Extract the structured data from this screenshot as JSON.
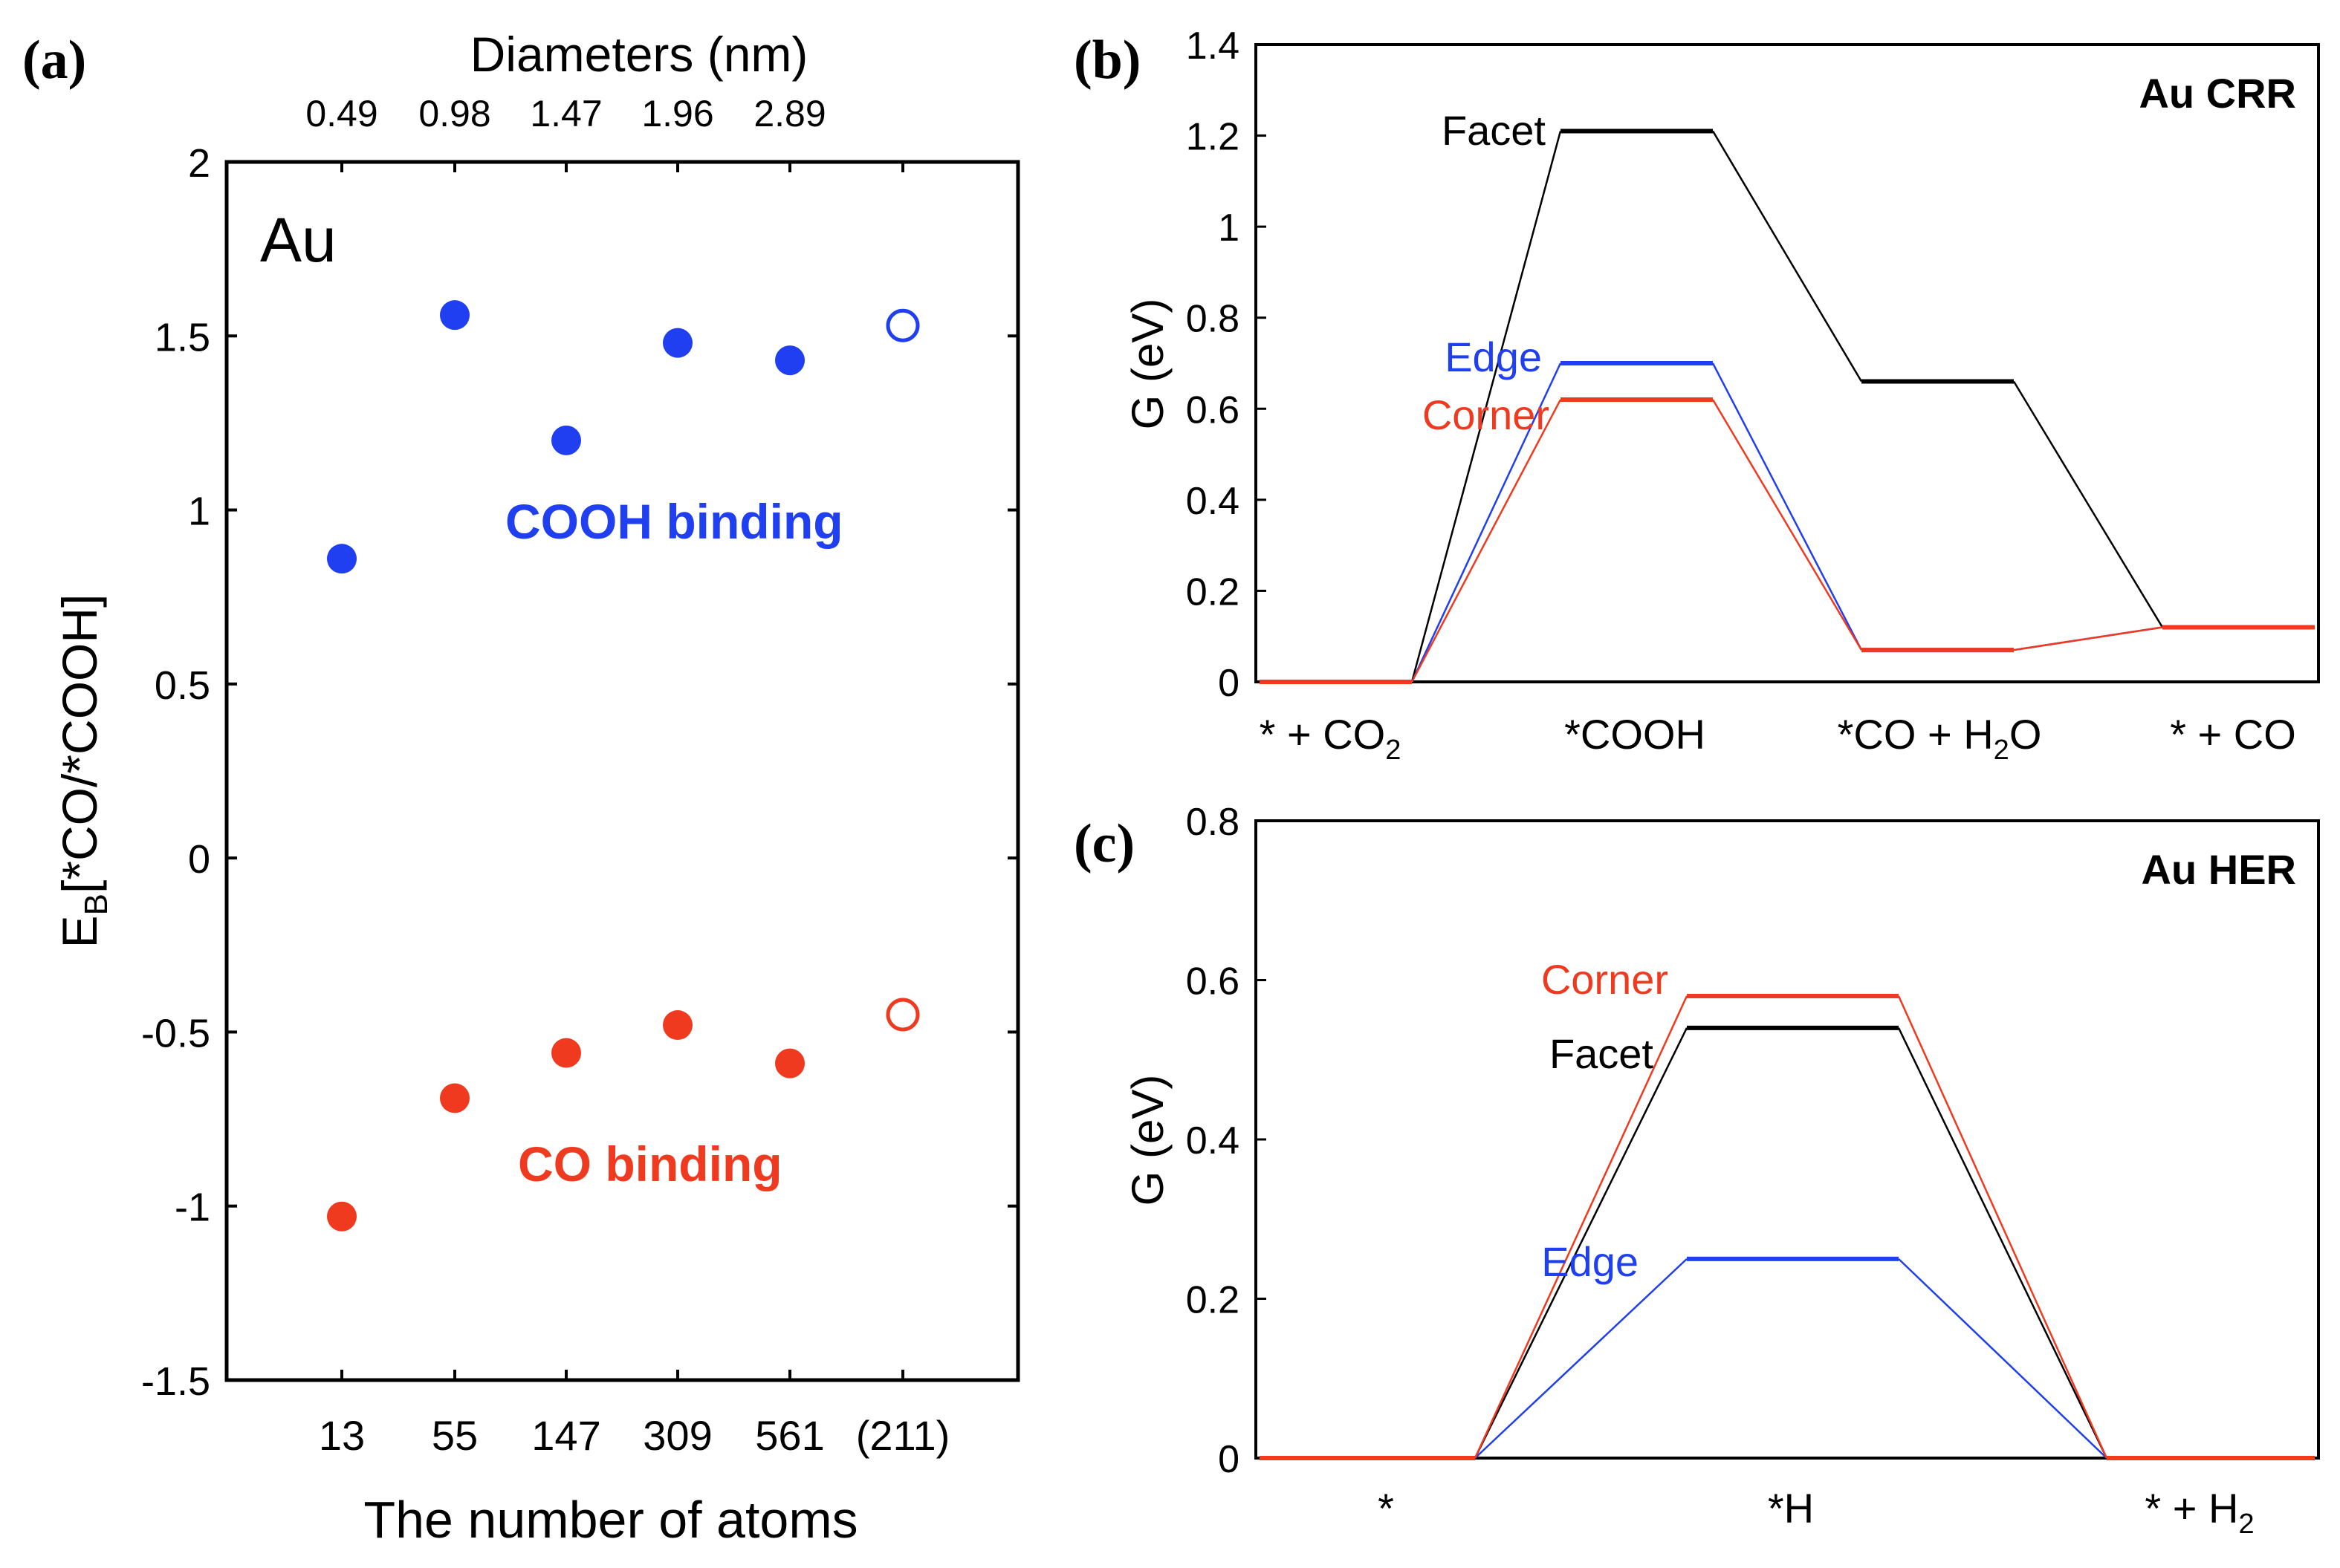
{
  "panels": {
    "a": {
      "label": "(a)",
      "element_label": "Au",
      "top_axis_title": "Diameters (nm)",
      "top_ticks": [
        "0.49",
        "0.98",
        "1.47",
        "1.96",
        "2.89"
      ],
      "xlabel": "The number of atoms",
      "ylabel_main": "E",
      "ylabel_sub": "B",
      "ylabel_rest": "[*CO/*COOH]",
      "annotation_cooh": "COOH binding",
      "annotation_co": "CO binding"
    },
    "b": {
      "label": "(b)",
      "title": "Au CRR",
      "ylabel": "G (eV)"
    },
    "c": {
      "label": "(c)",
      "title": "Au HER",
      "ylabel": "G (eV)"
    }
  },
  "colors": {
    "black": "#000000",
    "blue": "#1f3ff0",
    "red": "#f03a20"
  },
  "chart_data": [
    {
      "panel": "a",
      "type": "scatter",
      "title": "",
      "xlabel": "The number of atoms",
      "ylabel": "E_B[*CO/*COOH]",
      "categories": [
        "13",
        "55",
        "147",
        "309",
        "561",
        "(211)"
      ],
      "ylim": [
        -1.5,
        2
      ],
      "yticks": [
        "2",
        "1.5",
        "1",
        "0.5",
        "0",
        "-0.5",
        "-1",
        "-1.5"
      ],
      "series": [
        {
          "name": "COOH binding",
          "color": "#1f3ff0",
          "values": [
            0.86,
            1.56,
            1.2,
            1.48,
            1.43,
            1.53
          ],
          "hollow": [
            false,
            false,
            false,
            false,
            false,
            true
          ]
        },
        {
          "name": "CO binding",
          "color": "#f03a20",
          "values": [
            -1.03,
            -0.69,
            -0.56,
            -0.48,
            -0.59,
            -0.45
          ],
          "hollow": [
            false,
            false,
            false,
            false,
            false,
            true
          ]
        }
      ]
    },
    {
      "panel": "b",
      "type": "line",
      "title": "Au CRR",
      "ylabel": "G (eV)",
      "ylim": [
        0,
        1.4
      ],
      "yticks": [
        "1.4",
        "1.2",
        "1",
        "0.8",
        "0.6",
        "0.4",
        "0.2",
        "0"
      ],
      "states": [
        "* + CO2",
        "*COOH",
        "*CO + H2O",
        "* + CO"
      ],
      "series": [
        {
          "name": "Facet",
          "color": "#000000",
          "values": [
            0,
            1.21,
            0.66,
            0.12
          ]
        },
        {
          "name": "Edge",
          "color": "#1f3ff0",
          "values": [
            0,
            0.7,
            0.07,
            0.12
          ]
        },
        {
          "name": "Corner",
          "color": "#f03a20",
          "values": [
            0,
            0.62,
            0.07,
            0.12
          ]
        }
      ]
    },
    {
      "panel": "c",
      "type": "line",
      "title": "Au HER",
      "ylabel": "G (eV)",
      "ylim": [
        0,
        0.8
      ],
      "yticks": [
        "0.8",
        "0.6",
        "0.4",
        "0.2",
        "0"
      ],
      "states": [
        "*",
        "*H",
        "* + H2"
      ],
      "series": [
        {
          "name": "Facet",
          "color": "#000000",
          "values": [
            0,
            0.54,
            0
          ]
        },
        {
          "name": "Edge",
          "color": "#1f3ff0",
          "values": [
            0,
            0.25,
            0
          ]
        },
        {
          "name": "Corner",
          "color": "#f03a20",
          "values": [
            0,
            0.58,
            0
          ]
        }
      ]
    }
  ]
}
